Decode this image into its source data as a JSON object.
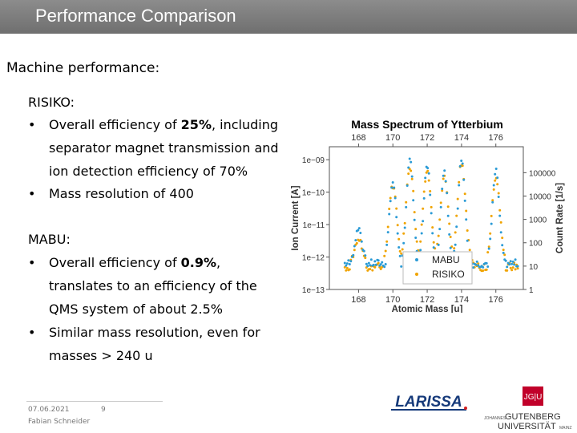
{
  "header": {
    "title": "Performance Comparison"
  },
  "section_heading": "Machine performance:",
  "risiko": {
    "label": "RISIKO:",
    "bullet1_l1a": "Overall efficiency of ",
    "bullet1_l1b": "25%",
    "bullet1_l1c": ", including",
    "bullet1_l2": "separator magnet transmission and",
    "bullet1_l3": "ion detection efficiency of 70%",
    "bullet2": "Mass resolution of 400"
  },
  "mabu": {
    "label": "MABU:",
    "bullet1_l1a": " Overall efficiency of ",
    "bullet1_l1b": "0.9%",
    "bullet1_l1c": ",",
    "bullet1_l2": "translates to an efficiency of the",
    "bullet1_l3": "QMS system of about 2.5%",
    "bullet2_l1": "Similar mass resolution, even for",
    "bullet2_l2": "masses > 240 u"
  },
  "footer": {
    "date": "07.06.2021",
    "page": "9",
    "author": "Fabian Schneider"
  },
  "logos": {
    "larissa_text": "LARISSA",
    "jgu_badge": "JG|U",
    "jgu_small": "JOHANNES",
    "jgu_name1": "GUTENBERG",
    "jgu_name2": "UNIVERSITÄT",
    "jgu_city": "MAINZ"
  },
  "chart_data": {
    "type": "scatter",
    "title": "Mass Spectrum of Ytterbium",
    "xlabel": "Atomic Mass [u]",
    "ylabel": "Ion Current [A]",
    "y2label": "Count Rate [1/s]",
    "xlim": [
      166.3,
      177.6
    ],
    "ylim_log10": [
      -13.0,
      -8.6
    ],
    "x_ticks": [
      "168",
      "170",
      "172",
      "174",
      "176"
    ],
    "x_tick_values": [
      168,
      170,
      172,
      174,
      176
    ],
    "y_ticks": [
      "1e−09",
      "1e−10",
      "1e−11",
      "1e−12",
      "1e−13"
    ],
    "y_tick_values": [
      -9,
      -10,
      -11,
      -12,
      -13
    ],
    "y2_ticks": [
      "100000",
      "10000",
      "1000",
      "100",
      "10",
      "1"
    ],
    "y2_log10": [
      5,
      4,
      3,
      2,
      1,
      0
    ],
    "legend": "bottom-right",
    "colors": {
      "MABU": "#2b9bd6",
      "RISIKO": "#f0a400"
    },
    "series": [
      {
        "name": "MABU",
        "peaks": [
          [
            168,
            -11.1
          ],
          [
            170,
            -9.7
          ],
          [
            171,
            -9.0
          ],
          [
            172,
            -9.15
          ],
          [
            173,
            -9.4
          ],
          [
            174,
            -8.95
          ],
          [
            176,
            -9.35
          ]
        ],
        "baseline_log10": -12.2,
        "width": 0.2
      },
      {
        "name": "RISIKO",
        "peaks": [
          [
            168,
            -11.45
          ],
          [
            170,
            -9.8
          ],
          [
            171,
            -9.2
          ],
          [
            172,
            -9.35
          ],
          [
            173,
            -9.55
          ],
          [
            174,
            -9.1
          ],
          [
            176,
            -9.5
          ]
        ],
        "baseline_log10": -12.3,
        "width": 0.24
      }
    ]
  }
}
